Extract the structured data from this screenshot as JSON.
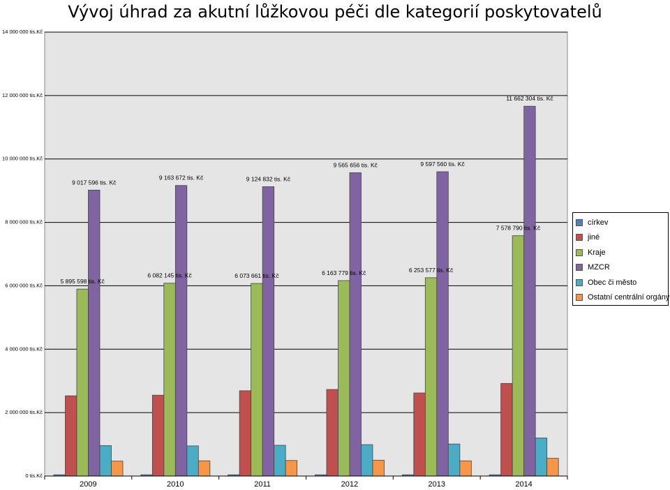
{
  "chart_data": {
    "type": "bar",
    "title": "Vývoj úhrad za akutní lůžkovou péči dle kategorií poskytovatelů",
    "categories": [
      "2009",
      "2010",
      "2011",
      "2012",
      "2013",
      "2014"
    ],
    "ylim": [
      0,
      14000000
    ],
    "y_ticks": [
      {
        "value": 0,
        "label": "0 tis.Kč"
      },
      {
        "value": 2000000,
        "label": "2 000 000 tis.Kč"
      },
      {
        "value": 4000000,
        "label": "4 000 000 tis.Kč"
      },
      {
        "value": 6000000,
        "label": "6 000 000 tis.Kč"
      },
      {
        "value": 8000000,
        "label": "8 000 000 tis.Kč"
      },
      {
        "value": 10000000,
        "label": "10 000 000 tis.Kč"
      },
      {
        "value": 12000000,
        "label": "12 000 000 tis.Kč"
      },
      {
        "value": 14000000,
        "label": "14 000 000 tis.Kč"
      }
    ],
    "grid": true,
    "plot_background": "#e5e5e5",
    "legend_position": "right",
    "series": [
      {
        "name": "církev",
        "color": "#4f81bd",
        "values": [
          40000,
          40000,
          40000,
          40000,
          40000,
          40000
        ]
      },
      {
        "name": "jiné",
        "color": "#c0504d",
        "values": [
          2530000,
          2550000,
          2690000,
          2730000,
          2620000,
          2920000
        ]
      },
      {
        "name": "Kraje",
        "color": "#9bbb59",
        "values": [
          5895598,
          6082145,
          6073661,
          6163779,
          6253577,
          7578790
        ],
        "data_labels": [
          "5 895 598 tis. Kč",
          "6 082 145 tis. Kč",
          "6 073 661 tis. Kč",
          "6 163 779 tis. Kč",
          "6 253 577 tis. Kč",
          "7 578 790 tis. Kč"
        ]
      },
      {
        "name": "MZCR",
        "color": "#8064a2",
        "values": [
          9017596,
          9163672,
          9124832,
          9565656,
          9597560,
          11662304
        ],
        "data_labels": [
          "9 017 596 tis. Kč",
          "9 163 672 tis. Kč",
          "9 124 832 tis. Kč",
          "9 565 656 tis. Kč",
          "9 597 560 tis. Kč",
          "11 662 304 tis. Kč"
        ]
      },
      {
        "name": "Obec či město",
        "color": "#4bacc6",
        "values": [
          960000,
          950000,
          970000,
          990000,
          1010000,
          1200000
        ]
      },
      {
        "name": "Ostatní centrální orgány",
        "color": "#f79646",
        "values": [
          470000,
          480000,
          490000,
          500000,
          480000,
          560000
        ]
      }
    ]
  }
}
